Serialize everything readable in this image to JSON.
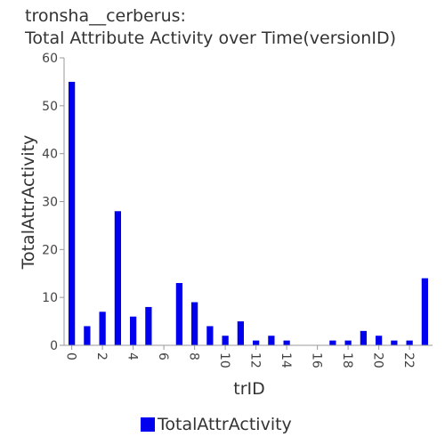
{
  "chart_data": {
    "type": "bar",
    "title_lines": [
      "tronsha__cerberus:",
      "Total Attribute Activity over Time(versionID)"
    ],
    "xlabel": "trID",
    "ylabel": "TotalAttrActivity",
    "x": [
      0,
      1,
      2,
      3,
      4,
      5,
      6,
      7,
      8,
      9,
      10,
      11,
      12,
      13,
      14,
      15,
      16,
      17,
      18,
      19,
      20,
      21,
      22,
      23
    ],
    "series": [
      {
        "name": "TotalAttrActivity",
        "color": "#0000ee",
        "values": [
          55,
          4,
          7,
          28,
          6,
          8,
          0,
          13,
          9,
          4,
          2,
          5,
          1,
          2,
          1,
          0,
          0,
          1,
          1,
          3,
          2,
          1,
          1,
          14
        ]
      }
    ],
    "xticks": [
      0,
      2,
      4,
      6,
      8,
      10,
      12,
      14,
      16,
      18,
      20,
      22
    ],
    "yticks": [
      0,
      10,
      20,
      30,
      40,
      50,
      60
    ],
    "xlim": [
      -0.5,
      23.5
    ],
    "ylim": [
      0,
      60
    ],
    "grid": false,
    "legend_position": "bottom"
  }
}
